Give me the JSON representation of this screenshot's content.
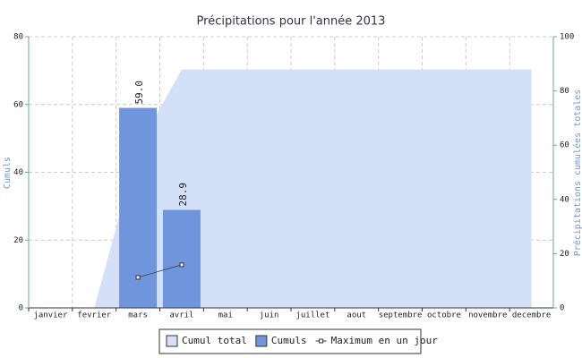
{
  "chart_data": {
    "type": "combo",
    "title": "Précipitations pour l'année 2013",
    "y_label": "Cumuls",
    "y2_label": "Précipitations cumulées totales",
    "categories": [
      "janvier",
      "fevrier",
      "mars",
      "avril",
      "mai",
      "juin",
      "juillet",
      "aout",
      "septembre",
      "octobre",
      "novembre",
      "decembre"
    ],
    "series": [
      {
        "name": "Cumul total",
        "type": "area",
        "axis": "y2",
        "color": "#d4e0f8",
        "values": [
          0,
          0,
          59,
          87.9,
          87.9,
          87.9,
          87.9,
          87.9,
          87.9,
          87.9,
          87.9,
          87.9
        ]
      },
      {
        "name": "Cumuls",
        "type": "bar",
        "color": "#6f95dc",
        "values": [
          null,
          null,
          59,
          28.9,
          null,
          null,
          null,
          null,
          null,
          null,
          null,
          null
        ],
        "value_labels": [
          null,
          null,
          "59.0",
          "28.9",
          null,
          null,
          null,
          null,
          null,
          null,
          null,
          null
        ]
      },
      {
        "name": "Maximum en un jour",
        "type": "line",
        "color": "#333333",
        "values": [
          null,
          null,
          9,
          12.7,
          null,
          null,
          null,
          null,
          null,
          null,
          null,
          null
        ]
      }
    ],
    "ylim": [
      0,
      80
    ],
    "yticks": [
      0,
      20,
      40,
      60,
      80
    ],
    "y2lim": [
      0,
      100
    ],
    "y2ticks": [
      0,
      20,
      40,
      60,
      80,
      100
    ],
    "grid": true,
    "legend": "bottom"
  }
}
